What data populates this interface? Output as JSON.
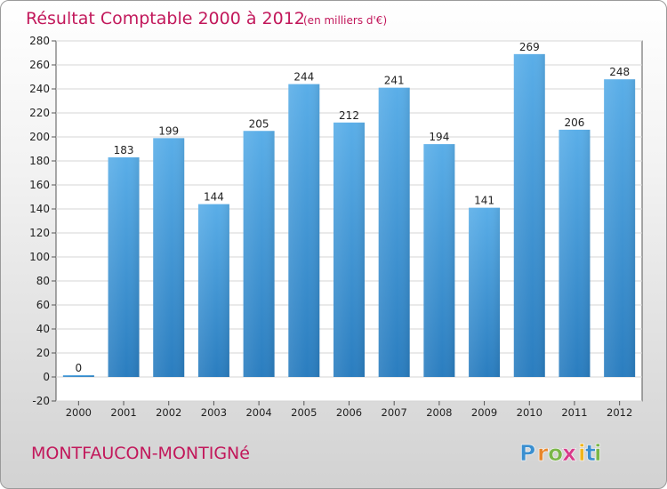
{
  "chart_data": {
    "type": "bar",
    "title": "Résultat Comptable 2000 à 2012",
    "subtitle": "(en milliers d'€)",
    "categories": [
      "2000",
      "2001",
      "2002",
      "2003",
      "2004",
      "2005",
      "2006",
      "2007",
      "2008",
      "2009",
      "2010",
      "2011",
      "2012"
    ],
    "values": [
      0,
      183,
      199,
      144,
      205,
      244,
      212,
      241,
      194,
      141,
      269,
      206,
      248
    ],
    "ylim": [
      -20,
      280
    ],
    "yticks": [
      -20,
      0,
      20,
      40,
      60,
      80,
      100,
      120,
      140,
      160,
      180,
      200,
      220,
      240,
      260,
      280
    ],
    "xlabel": "",
    "ylabel": "",
    "grid": true
  },
  "footer": {
    "place_name": "MONTFAUCON-MONTIGNé",
    "logo_letters": [
      "P",
      "r",
      "o",
      "x",
      "i",
      "t",
      "i"
    ]
  },
  "colors": {
    "bar_top": "#5aaee8",
    "bar_bottom": "#2a7dbf",
    "title": "#c2185b",
    "logo": [
      "#3a8fd0",
      "#e8862a",
      "#7ab648",
      "#d83a8a",
      "#f0b51c",
      "#3a8fd0",
      "#7ab648"
    ]
  }
}
